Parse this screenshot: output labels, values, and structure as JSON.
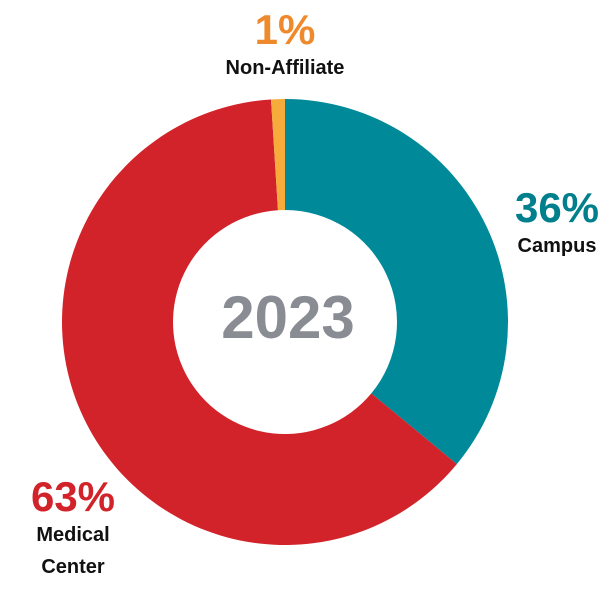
{
  "chart_data": {
    "type": "donut",
    "center_label": "2023",
    "categories": [
      "Campus",
      "Medical Center",
      "Non-Affiliate"
    ],
    "values": [
      36,
      63,
      1
    ],
    "value_labels": [
      "36%",
      "63%",
      "1%"
    ],
    "colors": [
      "#008a99",
      "#d2232a",
      "#f7ab3a"
    ],
    "label_colors": [
      "#007f8d",
      "#d2232a",
      "#ef8a2c"
    ]
  }
}
